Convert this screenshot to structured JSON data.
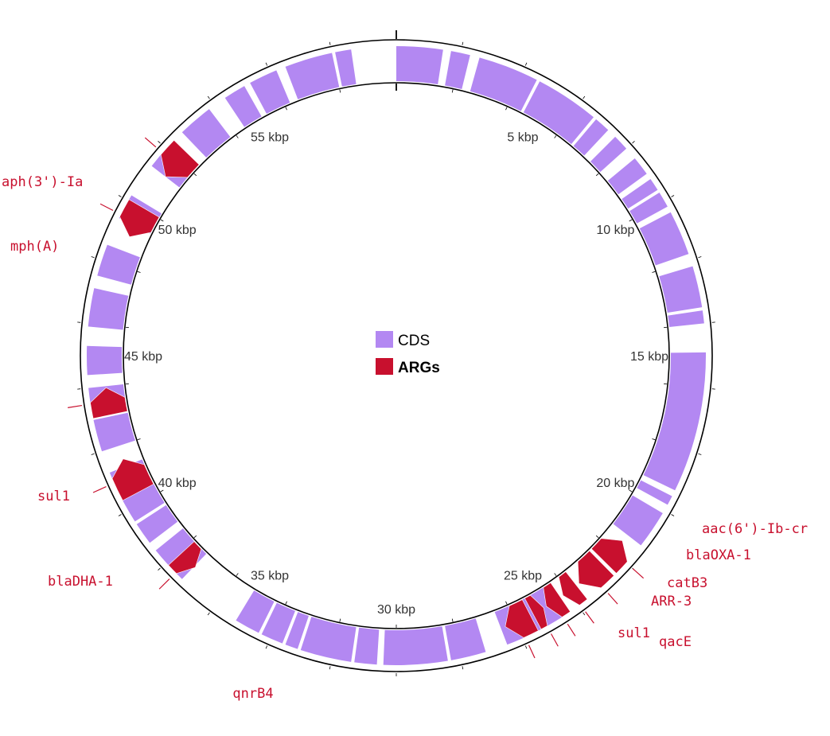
{
  "colors": {
    "cds": "#b388f2",
    "arg": "#c8102e",
    "ring": "#000000",
    "label": "#333333"
  },
  "legend": [
    {
      "label": "CDS",
      "color": "#b388f2",
      "bold": false
    },
    {
      "label": "ARGs",
      "color": "#c8102e",
      "bold": true
    }
  ],
  "genome_total_kbp": 60,
  "scale_labels": [
    "5 kbp",
    "10 kbp",
    "15 kbp",
    "20 kbp",
    "25 kbp",
    "30 kbp",
    "35 kbp",
    "40 kbp",
    "45 kbp",
    "50 kbp",
    "55 kbp"
  ],
  "cds": [
    [
      0.0,
      1.45
    ],
    [
      1.7,
      2.3
    ],
    [
      2.6,
      4.5
    ],
    [
      4.6,
      6.6
    ],
    [
      6.7,
      7.2
    ],
    [
      7.5,
      8.0
    ],
    [
      8.4,
      9.0
    ],
    [
      9.2,
      9.6
    ],
    [
      9.7,
      10.2
    ],
    [
      10.4,
      11.8
    ],
    [
      12.2,
      13.5
    ],
    [
      13.6,
      14.0
    ],
    [
      14.9,
      19.3
    ],
    [
      19.5,
      19.8
    ],
    [
      20.1,
      21.3
    ],
    [
      24.6,
      26.5
    ],
    [
      27.2,
      28.3
    ],
    [
      28.4,
      30.4
    ],
    [
      30.6,
      31.3
    ],
    [
      31.4,
      33.0
    ],
    [
      33.1,
      33.5
    ],
    [
      33.6,
      34.3
    ],
    [
      34.4,
      35.2
    ],
    [
      37.3,
      38.5
    ],
    [
      38.8,
      39.5
    ],
    [
      39.6,
      40.4
    ],
    [
      40.5,
      41.3
    ],
    [
      42.0,
      43.0
    ],
    [
      43.4,
      44.0
    ],
    [
      44.4,
      45.3
    ],
    [
      45.9,
      47.1
    ],
    [
      47.5,
      48.5
    ],
    [
      49.4,
      50.2
    ],
    [
      51.3,
      52.0
    ],
    [
      52.7,
      53.8
    ],
    [
      54.4,
      55.1
    ],
    [
      55.3,
      56.2
    ],
    [
      56.5,
      58.0
    ],
    [
      58.1,
      58.6
    ]
  ],
  "args": [
    {
      "name": "aac(6')-Ib-cr",
      "start": 21.55,
      "end": 22.45,
      "strand": -1
    },
    {
      "name": "blaOXA-1",
      "start": 22.55,
      "end": 23.55,
      "strand": 1
    },
    {
      "name": "catB3",
      "start": 23.65,
      "end": 24.2,
      "strand": 1
    },
    {
      "name": "ARR-3",
      "start": 24.3,
      "end": 24.85,
      "strand": 1
    },
    {
      "name": "qacE",
      "start": 24.95,
      "end": 25.35,
      "strand": -1
    },
    {
      "name": "sul1",
      "start": 25.45,
      "end": 26.35,
      "strand": 1
    },
    {
      "name": "qnrB4",
      "start": 37.25,
      "end": 37.9,
      "strand": -1
    },
    {
      "name": "blaDHA-1",
      "start": 40.35,
      "end": 41.55,
      "strand": 1
    },
    {
      "name": "sul1",
      "start": 43.05,
      "end": 43.95,
      "strand": 1
    },
    {
      "name": "mph(A)",
      "start": 49.0,
      "end": 50.05,
      "strand": -1
    },
    {
      "name": "aph(3')-Ia",
      "start": 51.3,
      "end": 52.35,
      "strand": -1
    }
  ]
}
